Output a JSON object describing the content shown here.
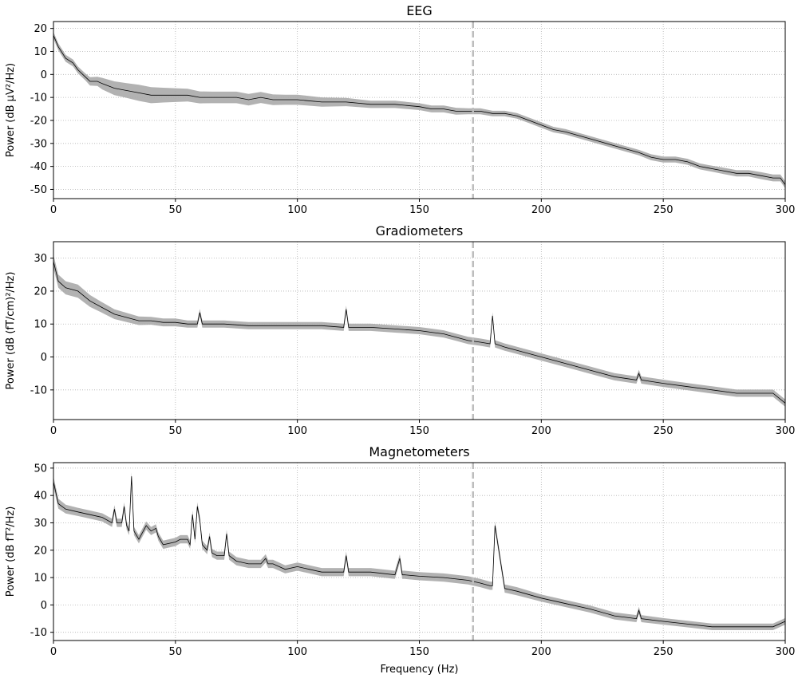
{
  "figure": {
    "xlabel": "Frequency (Hz)"
  },
  "chart_data": [
    {
      "type": "line",
      "title": "EEG",
      "xlabel": "",
      "ylabel": "Power (dB µV²/Hz)",
      "xlim": [
        0,
        300
      ],
      "ylim": [
        -54,
        23
      ],
      "xticks": [
        0,
        50,
        100,
        150,
        200,
        250,
        300
      ],
      "yticks": [
        -50,
        -40,
        -30,
        -20,
        -10,
        0,
        10,
        20
      ],
      "grid": true,
      "vline_x": 172,
      "line_color": "#000000",
      "band_color": "#aaaaaa",
      "series": [
        {
          "x": [
            0,
            2,
            5,
            8,
            10,
            13,
            15,
            18,
            20,
            25,
            30,
            35,
            40,
            45,
            50,
            55,
            60,
            65,
            70,
            75,
            80,
            85,
            90,
            95,
            100,
            110,
            120,
            130,
            140,
            150,
            155,
            160,
            165,
            170,
            175,
            180,
            185,
            190,
            195,
            200,
            205,
            210,
            220,
            230,
            240,
            245,
            250,
            255,
            260,
            265,
            270,
            275,
            280,
            285,
            290,
            295,
            298,
            300
          ],
          "mean": [
            17,
            12,
            7,
            5,
            2,
            -1,
            -3,
            -3,
            -4,
            -6,
            -7,
            -8,
            -9,
            -9,
            -9,
            -9,
            -10,
            -10,
            -10,
            -10,
            -11,
            -10,
            -11,
            -11,
            -11,
            -12,
            -12,
            -13,
            -13,
            -14,
            -15,
            -15,
            -16,
            -16,
            -16,
            -17,
            -17,
            -18,
            -20,
            -22,
            -24,
            -25,
            -28,
            -31,
            -34,
            -36,
            -37,
            -37,
            -38,
            -40,
            -41,
            -42,
            -43,
            -43,
            -44,
            -45,
            -45,
            -48
          ],
          "band": [
            1.5,
            1.5,
            1.5,
            1.5,
            1.5,
            1.5,
            1.8,
            2,
            2.5,
            3,
            3.2,
            3.5,
            3.5,
            3.2,
            3,
            2.8,
            2.6,
            2.5,
            2.5,
            2.5,
            2.5,
            2.4,
            2.3,
            2.2,
            2.2,
            2,
            1.8,
            1.6,
            1.6,
            1.5,
            1.5,
            1.5,
            1.5,
            1.3,
            1.3,
            1.2,
            1.2,
            1.2,
            1.2,
            1.2,
            1.2,
            1.2,
            1.2,
            1.2,
            1.2,
            1.3,
            1.3,
            1.3,
            1.3,
            1.3,
            1.3,
            1.4,
            1.4,
            1.4,
            1.5,
            1.5,
            1.5,
            1.5
          ]
        }
      ]
    },
    {
      "type": "line",
      "title": "Gradiometers",
      "xlabel": "",
      "ylabel": "Power (dB (fT/cm)²/Hz)",
      "xlim": [
        0,
        300
      ],
      "ylim": [
        -19,
        35
      ],
      "xticks": [
        0,
        50,
        100,
        150,
        200,
        250,
        300
      ],
      "yticks": [
        -10,
        0,
        10,
        20,
        30
      ],
      "grid": true,
      "vline_x": 172,
      "line_color": "#000000",
      "band_color": "#aaaaaa",
      "series": [
        {
          "x": [
            0,
            2,
            5,
            10,
            15,
            20,
            25,
            30,
            35,
            40,
            45,
            50,
            55,
            59,
            60,
            61,
            65,
            70,
            80,
            90,
            100,
            110,
            119,
            120,
            121,
            130,
            140,
            150,
            155,
            160,
            165,
            170,
            175,
            179,
            180,
            181,
            185,
            190,
            200,
            210,
            220,
            230,
            239,
            240,
            241,
            250,
            260,
            270,
            280,
            290,
            295,
            300
          ],
          "mean": [
            29,
            23,
            21,
            20,
            17,
            15,
            13,
            12,
            11,
            11,
            10.5,
            10.5,
            10,
            10,
            13.5,
            10,
            10,
            10,
            9.5,
            9.5,
            9.5,
            9.5,
            9,
            14.5,
            9,
            9,
            8.5,
            8,
            7.5,
            7,
            6,
            5,
            4.5,
            4,
            12.5,
            4,
            3,
            2,
            0,
            -2,
            -4,
            -6,
            -7,
            -5,
            -7,
            -8,
            -9,
            -10,
            -11,
            -11,
            -11,
            -14
          ],
          "band": [
            2,
            2,
            2,
            2,
            1.8,
            1.6,
            1.5,
            1.4,
            1.3,
            1.2,
            1.2,
            1.2,
            1.1,
            1.1,
            1.1,
            1.1,
            1.1,
            1.1,
            1.1,
            1.1,
            1.1,
            1.1,
            1.1,
            1.1,
            1.1,
            1.1,
            1.1,
            1.1,
            1.1,
            1.1,
            1.1,
            1.1,
            1.1,
            1.1,
            1.1,
            1.1,
            1.1,
            1.1,
            1.1,
            1.1,
            1.1,
            1.1,
            1.1,
            1.1,
            1.1,
            1.1,
            1.1,
            1.1,
            1.1,
            1.1,
            1.1,
            1.1
          ]
        }
      ]
    },
    {
      "type": "line",
      "title": "Magnetometers",
      "xlabel": "Frequency (Hz)",
      "ylabel": "Power (dB fT²/Hz)",
      "xlim": [
        0,
        300
      ],
      "ylim": [
        -13,
        52
      ],
      "xticks": [
        0,
        50,
        100,
        150,
        200,
        250,
        300
      ],
      "yticks": [
        -10,
        0,
        10,
        20,
        30,
        40,
        50
      ],
      "grid": true,
      "vline_x": 172,
      "line_color": "#000000",
      "band_color": "#aaaaaa",
      "series": [
        {
          "x": [
            0,
            2,
            5,
            10,
            15,
            20,
            24,
            25,
            26,
            28,
            29,
            30,
            31,
            32,
            33,
            35,
            38,
            40,
            42,
            43,
            45,
            50,
            52,
            55,
            56,
            57,
            58,
            59,
            60,
            61,
            63,
            64,
            65,
            67,
            70,
            71,
            72,
            75,
            80,
            85,
            87,
            88,
            90,
            95,
            100,
            105,
            110,
            115,
            119,
            120,
            121,
            130,
            140,
            142,
            143,
            144,
            150,
            160,
            170,
            175,
            179,
            180,
            181,
            185,
            190,
            200,
            210,
            220,
            230,
            239,
            240,
            241,
            250,
            260,
            270,
            280,
            290,
            295,
            300
          ],
          "mean": [
            45,
            37,
            35,
            34,
            33,
            32,
            30,
            35,
            30,
            30,
            36,
            29,
            27,
            47,
            27,
            24,
            29,
            27,
            28,
            25,
            22,
            23,
            24,
            24,
            22,
            33,
            24,
            36,
            31,
            22,
            20,
            25,
            19,
            18,
            18,
            26,
            18,
            16,
            15,
            15,
            17,
            15,
            15,
            13,
            14,
            13,
            12,
            12,
            12,
            18,
            12,
            12,
            11,
            17,
            11,
            11,
            10.5,
            10,
            9,
            8,
            7,
            7,
            29,
            6,
            5,
            2.5,
            0.5,
            -1.5,
            -4,
            -5,
            -2,
            -5,
            -6,
            -7,
            -8,
            -8,
            -8,
            -8,
            -6
          ],
          "band": [
            2,
            1.8,
            1.6,
            1.5,
            1.5,
            1.5,
            1.5,
            1.5,
            1.5,
            1.5,
            1.5,
            1.5,
            1.5,
            1.5,
            1.5,
            1.5,
            1.5,
            1.5,
            1.5,
            1.5,
            1.5,
            1.5,
            1.5,
            1.5,
            1.5,
            1.5,
            1.5,
            1.5,
            1.5,
            1.5,
            1.5,
            1.5,
            1.5,
            1.5,
            1.5,
            1.5,
            1.5,
            1.5,
            1.5,
            1.5,
            1.5,
            1.5,
            1.5,
            1.5,
            1.5,
            1.5,
            1.5,
            1.5,
            1.5,
            1.5,
            1.5,
            1.5,
            1.5,
            1.5,
            1.5,
            1.5,
            1.5,
            1.5,
            1.5,
            1.5,
            1.5,
            1.5,
            1.5,
            1.5,
            1.5,
            1.3,
            1.3,
            1.3,
            1.3,
            1.3,
            1.3,
            1.3,
            1.2,
            1.2,
            1.2,
            1.2,
            1.2,
            1.2,
            1.2
          ]
        }
      ]
    }
  ]
}
